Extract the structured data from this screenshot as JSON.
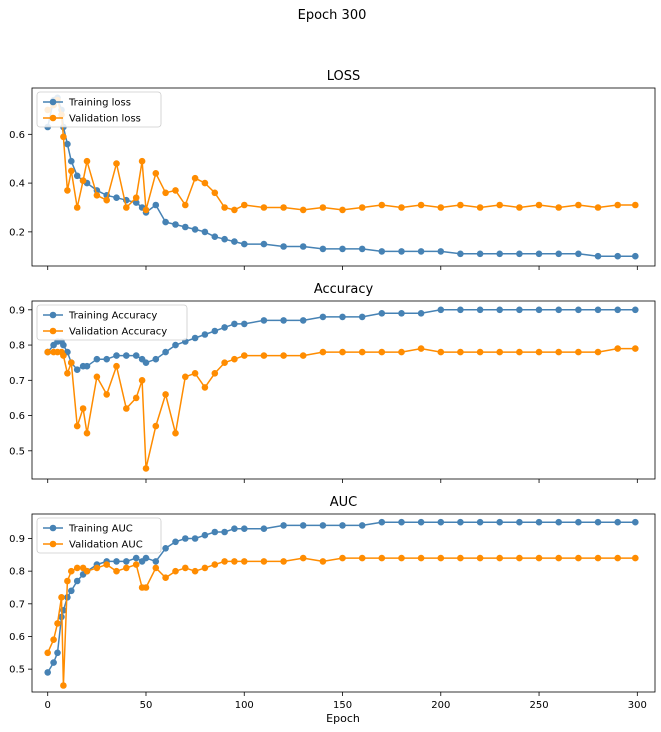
{
  "figure_title": "Epoch 300",
  "colors": {
    "training": "#4682b4",
    "validation": "#ff8c00"
  },
  "shared_x": {
    "label": "Epoch",
    "ticks": [
      0,
      50,
      100,
      150,
      200,
      250,
      300
    ],
    "range": [
      -8,
      309
    ]
  },
  "chart_data": [
    {
      "type": "line",
      "title": "LOSS",
      "legend_position": "upper-left",
      "ylim": [
        0.06,
        0.79
      ],
      "yticks": [
        0.2,
        0.4,
        0.6
      ],
      "grid": false,
      "x": [
        0,
        3,
        5,
        7,
        8,
        10,
        12,
        15,
        18,
        20,
        25,
        30,
        35,
        40,
        45,
        48,
        50,
        55,
        60,
        65,
        70,
        75,
        80,
        85,
        90,
        95,
        100,
        110,
        120,
        130,
        140,
        150,
        160,
        170,
        180,
        190,
        200,
        210,
        220,
        230,
        240,
        250,
        260,
        270,
        280,
        290,
        299
      ],
      "series": [
        {
          "name": "Training loss",
          "values": [
            0.63,
            0.74,
            0.75,
            0.7,
            0.63,
            0.56,
            0.49,
            0.43,
            0.41,
            0.4,
            0.37,
            0.35,
            0.34,
            0.33,
            0.32,
            0.3,
            0.28,
            0.31,
            0.24,
            0.23,
            0.22,
            0.21,
            0.2,
            0.18,
            0.17,
            0.16,
            0.15,
            0.15,
            0.14,
            0.14,
            0.13,
            0.13,
            0.13,
            0.12,
            0.12,
            0.12,
            0.12,
            0.11,
            0.11,
            0.11,
            0.11,
            0.11,
            0.11,
            0.11,
            0.1,
            0.1,
            0.1
          ]
        },
        {
          "name": "Validation loss",
          "values": [
            0.7,
            0.72,
            0.74,
            0.68,
            0.59,
            0.37,
            0.45,
            0.3,
            0.41,
            0.49,
            0.35,
            0.33,
            0.48,
            0.3,
            0.34,
            0.49,
            0.29,
            0.44,
            0.36,
            0.37,
            0.31,
            0.42,
            0.4,
            0.36,
            0.3,
            0.29,
            0.31,
            0.3,
            0.3,
            0.29,
            0.3,
            0.29,
            0.3,
            0.31,
            0.3,
            0.31,
            0.3,
            0.31,
            0.3,
            0.31,
            0.3,
            0.31,
            0.3,
            0.31,
            0.3,
            0.31,
            0.31
          ]
        }
      ]
    },
    {
      "type": "line",
      "title": "Accuracy",
      "legend_position": "upper-left",
      "ylim": [
        0.42,
        0.925
      ],
      "yticks": [
        0.5,
        0.6,
        0.7,
        0.8,
        0.9
      ],
      "grid": false,
      "x": [
        0,
        3,
        5,
        7,
        8,
        10,
        12,
        15,
        18,
        20,
        25,
        30,
        35,
        40,
        45,
        48,
        50,
        55,
        60,
        65,
        70,
        75,
        80,
        85,
        90,
        95,
        100,
        110,
        120,
        130,
        140,
        150,
        160,
        170,
        180,
        190,
        200,
        210,
        220,
        230,
        240,
        250,
        260,
        270,
        280,
        290,
        299
      ],
      "series": [
        {
          "name": "Training Accuracy",
          "values": [
            0.78,
            0.8,
            0.81,
            0.81,
            0.8,
            0.78,
            0.75,
            0.73,
            0.74,
            0.74,
            0.76,
            0.76,
            0.77,
            0.77,
            0.77,
            0.76,
            0.75,
            0.76,
            0.78,
            0.8,
            0.81,
            0.82,
            0.83,
            0.84,
            0.85,
            0.86,
            0.86,
            0.87,
            0.87,
            0.87,
            0.88,
            0.88,
            0.88,
            0.89,
            0.89,
            0.89,
            0.9,
            0.9,
            0.9,
            0.9,
            0.9,
            0.9,
            0.9,
            0.9,
            0.9,
            0.9,
            0.9
          ]
        },
        {
          "name": "Validation Accuracy",
          "values": [
            0.78,
            0.78,
            0.78,
            0.78,
            0.77,
            0.72,
            0.75,
            0.57,
            0.62,
            0.55,
            0.71,
            0.66,
            0.74,
            0.62,
            0.65,
            0.7,
            0.45,
            0.57,
            0.66,
            0.55,
            0.71,
            0.72,
            0.68,
            0.72,
            0.75,
            0.76,
            0.77,
            0.77,
            0.77,
            0.77,
            0.78,
            0.78,
            0.78,
            0.78,
            0.78,
            0.79,
            0.78,
            0.78,
            0.78,
            0.78,
            0.78,
            0.78,
            0.78,
            0.78,
            0.78,
            0.79,
            0.79
          ]
        }
      ]
    },
    {
      "type": "line",
      "title": "AUC",
      "legend_position": "upper-left",
      "ylim": [
        0.43,
        0.975
      ],
      "yticks": [
        0.5,
        0.6,
        0.7,
        0.8,
        0.9
      ],
      "grid": false,
      "x": [
        0,
        3,
        5,
        7,
        8,
        10,
        12,
        15,
        18,
        20,
        25,
        30,
        35,
        40,
        45,
        48,
        50,
        55,
        60,
        65,
        70,
        75,
        80,
        85,
        90,
        95,
        100,
        110,
        120,
        130,
        140,
        150,
        160,
        170,
        180,
        190,
        200,
        210,
        220,
        230,
        240,
        250,
        260,
        270,
        280,
        290,
        299
      ],
      "series": [
        {
          "name": "Training AUC",
          "values": [
            0.49,
            0.52,
            0.55,
            0.66,
            0.68,
            0.72,
            0.74,
            0.77,
            0.79,
            0.8,
            0.82,
            0.83,
            0.83,
            0.83,
            0.84,
            0.83,
            0.84,
            0.83,
            0.87,
            0.89,
            0.9,
            0.9,
            0.91,
            0.92,
            0.92,
            0.93,
            0.93,
            0.93,
            0.94,
            0.94,
            0.94,
            0.94,
            0.94,
            0.95,
            0.95,
            0.95,
            0.95,
            0.95,
            0.95,
            0.95,
            0.95,
            0.95,
            0.95,
            0.95,
            0.95,
            0.95,
            0.95
          ]
        },
        {
          "name": "Validation AUC",
          "values": [
            0.55,
            0.59,
            0.64,
            0.72,
            0.45,
            0.77,
            0.8,
            0.81,
            0.81,
            0.8,
            0.81,
            0.82,
            0.8,
            0.81,
            0.82,
            0.75,
            0.75,
            0.81,
            0.78,
            0.8,
            0.81,
            0.8,
            0.81,
            0.82,
            0.83,
            0.83,
            0.83,
            0.83,
            0.83,
            0.84,
            0.83,
            0.84,
            0.84,
            0.84,
            0.84,
            0.84,
            0.84,
            0.84,
            0.84,
            0.84,
            0.84,
            0.84,
            0.84,
            0.84,
            0.84,
            0.84,
            0.84
          ]
        }
      ]
    }
  ]
}
